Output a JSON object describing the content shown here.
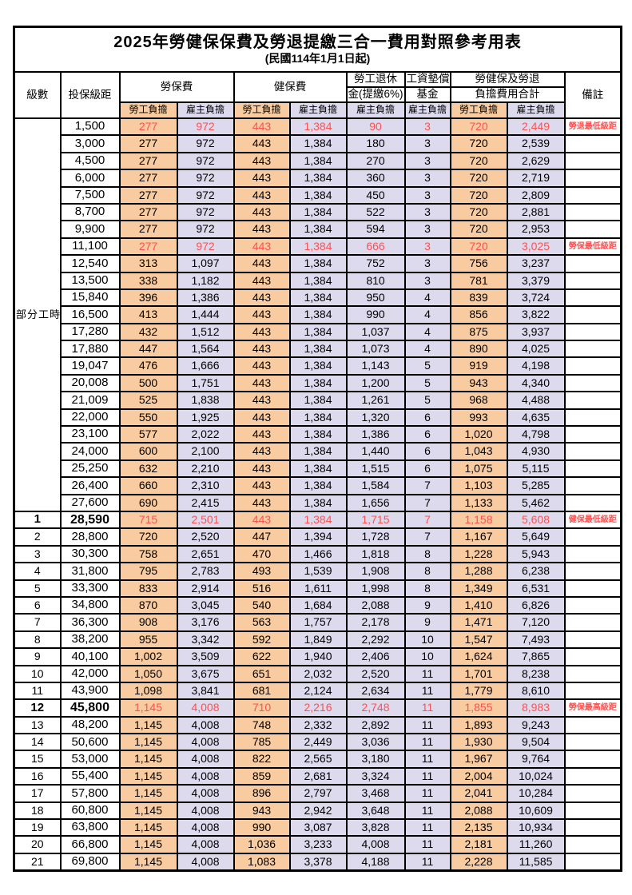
{
  "title": "2025年勞健保保費及勞退提繳三合一費用對照參考用表",
  "subtitle": "(民國114年1月1日起)",
  "header": {
    "level": "級數",
    "salary": "投保級距",
    "labor": "勞保費",
    "health": "健保費",
    "pension_top": "勞工退休",
    "pension_bottom": "金(提繳6%)",
    "fund_top": "工資墊償",
    "fund_bottom": "基金",
    "total_top": "勞健保及勞退",
    "total_bottom": "負擔費用合計",
    "remark": "備註",
    "worker": "勞工負擔",
    "employer": "雇主負擔"
  },
  "part_time_label": "部分工時",
  "colors": {
    "worker_bg": "#F8CBA0",
    "employer_bg": "#DDDAEE",
    "highlight_text": "#FF5050",
    "border": "#000000"
  },
  "rows": [
    {
      "level": "",
      "salary": "1,500",
      "values": [
        "277",
        "972",
        "443",
        "1,384",
        "90",
        "3",
        "720",
        "2,449"
      ],
      "remark": "勞退最低級距",
      "highlight": true,
      "emph": false
    },
    {
      "level": "",
      "salary": "3,000",
      "values": [
        "277",
        "972",
        "443",
        "1,384",
        "180",
        "3",
        "720",
        "2,539"
      ],
      "remark": "",
      "highlight": false,
      "emph": false
    },
    {
      "level": "",
      "salary": "4,500",
      "values": [
        "277",
        "972",
        "443",
        "1,384",
        "270",
        "3",
        "720",
        "2,629"
      ],
      "remark": "",
      "highlight": false,
      "emph": false
    },
    {
      "level": "",
      "salary": "6,000",
      "values": [
        "277",
        "972",
        "443",
        "1,384",
        "360",
        "3",
        "720",
        "2,719"
      ],
      "remark": "",
      "highlight": false,
      "emph": false
    },
    {
      "level": "",
      "salary": "7,500",
      "values": [
        "277",
        "972",
        "443",
        "1,384",
        "450",
        "3",
        "720",
        "2,809"
      ],
      "remark": "",
      "highlight": false,
      "emph": false
    },
    {
      "level": "",
      "salary": "8,700",
      "values": [
        "277",
        "972",
        "443",
        "1,384",
        "522",
        "3",
        "720",
        "2,881"
      ],
      "remark": "",
      "highlight": false,
      "emph": false
    },
    {
      "level": "",
      "salary": "9,900",
      "values": [
        "277",
        "972",
        "443",
        "1,384",
        "594",
        "3",
        "720",
        "2,953"
      ],
      "remark": "",
      "highlight": false,
      "emph": false
    },
    {
      "level": "",
      "salary": "11,100",
      "values": [
        "277",
        "972",
        "443",
        "1,384",
        "666",
        "3",
        "720",
        "3,025"
      ],
      "remark": "勞保最低級距",
      "highlight": true,
      "emph": false
    },
    {
      "level": "",
      "salary": "12,540",
      "values": [
        "313",
        "1,097",
        "443",
        "1,384",
        "752",
        "3",
        "756",
        "3,237"
      ],
      "remark": "",
      "highlight": false,
      "emph": false
    },
    {
      "level": "",
      "salary": "13,500",
      "values": [
        "338",
        "1,182",
        "443",
        "1,384",
        "810",
        "3",
        "781",
        "3,379"
      ],
      "remark": "",
      "highlight": false,
      "emph": false
    },
    {
      "level": "",
      "salary": "15,840",
      "values": [
        "396",
        "1,386",
        "443",
        "1,384",
        "950",
        "4",
        "839",
        "3,724"
      ],
      "remark": "",
      "highlight": false,
      "emph": false
    },
    {
      "level": "",
      "salary": "16,500",
      "values": [
        "413",
        "1,444",
        "443",
        "1,384",
        "990",
        "4",
        "856",
        "3,822"
      ],
      "remark": "",
      "highlight": false,
      "emph": false
    },
    {
      "level": "",
      "salary": "17,280",
      "values": [
        "432",
        "1,512",
        "443",
        "1,384",
        "1,037",
        "4",
        "875",
        "3,937"
      ],
      "remark": "",
      "highlight": false,
      "emph": false
    },
    {
      "level": "",
      "salary": "17,880",
      "values": [
        "447",
        "1,564",
        "443",
        "1,384",
        "1,073",
        "4",
        "890",
        "4,025"
      ],
      "remark": "",
      "highlight": false,
      "emph": false
    },
    {
      "level": "",
      "salary": "19,047",
      "values": [
        "476",
        "1,666",
        "443",
        "1,384",
        "1,143",
        "5",
        "919",
        "4,198"
      ],
      "remark": "",
      "highlight": false,
      "emph": false
    },
    {
      "level": "",
      "salary": "20,008",
      "values": [
        "500",
        "1,751",
        "443",
        "1,384",
        "1,200",
        "5",
        "943",
        "4,340"
      ],
      "remark": "",
      "highlight": false,
      "emph": false
    },
    {
      "level": "",
      "salary": "21,009",
      "values": [
        "525",
        "1,838",
        "443",
        "1,384",
        "1,261",
        "5",
        "968",
        "4,488"
      ],
      "remark": "",
      "highlight": false,
      "emph": false
    },
    {
      "level": "",
      "salary": "22,000",
      "values": [
        "550",
        "1,925",
        "443",
        "1,384",
        "1,320",
        "6",
        "993",
        "4,635"
      ],
      "remark": "",
      "highlight": false,
      "emph": false
    },
    {
      "level": "",
      "salary": "23,100",
      "values": [
        "577",
        "2,022",
        "443",
        "1,384",
        "1,386",
        "6",
        "1,020",
        "4,798"
      ],
      "remark": "",
      "highlight": false,
      "emph": false
    },
    {
      "level": "",
      "salary": "24,000",
      "values": [
        "600",
        "2,100",
        "443",
        "1,384",
        "1,440",
        "6",
        "1,043",
        "4,930"
      ],
      "remark": "",
      "highlight": false,
      "emph": false
    },
    {
      "level": "",
      "salary": "25,250",
      "values": [
        "632",
        "2,210",
        "443",
        "1,384",
        "1,515",
        "6",
        "1,075",
        "5,115"
      ],
      "remark": "",
      "highlight": false,
      "emph": false
    },
    {
      "level": "",
      "salary": "26,400",
      "values": [
        "660",
        "2,310",
        "443",
        "1,384",
        "1,584",
        "7",
        "1,103",
        "5,285"
      ],
      "remark": "",
      "highlight": false,
      "emph": false
    },
    {
      "level": "",
      "salary": "27,600",
      "values": [
        "690",
        "2,415",
        "443",
        "1,384",
        "1,656",
        "7",
        "1,133",
        "5,462"
      ],
      "remark": "",
      "highlight": false,
      "emph": false
    },
    {
      "level": "1",
      "salary": "28,590",
      "values": [
        "715",
        "2,501",
        "443",
        "1,384",
        "1,715",
        "7",
        "1,158",
        "5,608"
      ],
      "remark": "健保最低級距",
      "highlight": true,
      "emph": true
    },
    {
      "level": "2",
      "salary": "28,800",
      "values": [
        "720",
        "2,520",
        "447",
        "1,394",
        "1,728",
        "7",
        "1,167",
        "5,649"
      ],
      "remark": "",
      "highlight": false,
      "emph": false
    },
    {
      "level": "3",
      "salary": "30,300",
      "values": [
        "758",
        "2,651",
        "470",
        "1,466",
        "1,818",
        "8",
        "1,228",
        "5,943"
      ],
      "remark": "",
      "highlight": false,
      "emph": false
    },
    {
      "level": "4",
      "salary": "31,800",
      "values": [
        "795",
        "2,783",
        "493",
        "1,539",
        "1,908",
        "8",
        "1,288",
        "6,238"
      ],
      "remark": "",
      "highlight": false,
      "emph": false
    },
    {
      "level": "5",
      "salary": "33,300",
      "values": [
        "833",
        "2,914",
        "516",
        "1,611",
        "1,998",
        "8",
        "1,349",
        "6,531"
      ],
      "remark": "",
      "highlight": false,
      "emph": false
    },
    {
      "level": "6",
      "salary": "34,800",
      "values": [
        "870",
        "3,045",
        "540",
        "1,684",
        "2,088",
        "9",
        "1,410",
        "6,826"
      ],
      "remark": "",
      "highlight": false,
      "emph": false
    },
    {
      "level": "7",
      "salary": "36,300",
      "values": [
        "908",
        "3,176",
        "563",
        "1,757",
        "2,178",
        "9",
        "1,471",
        "7,120"
      ],
      "remark": "",
      "highlight": false,
      "emph": false
    },
    {
      "level": "8",
      "salary": "38,200",
      "values": [
        "955",
        "3,342",
        "592",
        "1,849",
        "2,292",
        "10",
        "1,547",
        "7,493"
      ],
      "remark": "",
      "highlight": false,
      "emph": false
    },
    {
      "level": "9",
      "salary": "40,100",
      "values": [
        "1,002",
        "3,509",
        "622",
        "1,940",
        "2,406",
        "10",
        "1,624",
        "7,865"
      ],
      "remark": "",
      "highlight": false,
      "emph": false
    },
    {
      "level": "10",
      "salary": "42,000",
      "values": [
        "1,050",
        "3,675",
        "651",
        "2,032",
        "2,520",
        "11",
        "1,701",
        "8,238"
      ],
      "remark": "",
      "highlight": false,
      "emph": false
    },
    {
      "level": "11",
      "salary": "43,900",
      "values": [
        "1,098",
        "3,841",
        "681",
        "2,124",
        "2,634",
        "11",
        "1,779",
        "8,610"
      ],
      "remark": "",
      "highlight": false,
      "emph": false
    },
    {
      "level": "12",
      "salary": "45,800",
      "values": [
        "1,145",
        "4,008",
        "710",
        "2,216",
        "2,748",
        "11",
        "1,855",
        "8,983"
      ],
      "remark": "勞保最高級距",
      "highlight": true,
      "emph": true
    },
    {
      "level": "13",
      "salary": "48,200",
      "values": [
        "1,145",
        "4,008",
        "748",
        "2,332",
        "2,892",
        "11",
        "1,893",
        "9,243"
      ],
      "remark": "",
      "highlight": false,
      "emph": false
    },
    {
      "level": "14",
      "salary": "50,600",
      "values": [
        "1,145",
        "4,008",
        "785",
        "2,449",
        "3,036",
        "11",
        "1,930",
        "9,504"
      ],
      "remark": "",
      "highlight": false,
      "emph": false
    },
    {
      "level": "15",
      "salary": "53,000",
      "values": [
        "1,145",
        "4,008",
        "822",
        "2,565",
        "3,180",
        "11",
        "1,967",
        "9,764"
      ],
      "remark": "",
      "highlight": false,
      "emph": false
    },
    {
      "level": "16",
      "salary": "55,400",
      "values": [
        "1,145",
        "4,008",
        "859",
        "2,681",
        "3,324",
        "11",
        "2,004",
        "10,024"
      ],
      "remark": "",
      "highlight": false,
      "emph": false
    },
    {
      "level": "17",
      "salary": "57,800",
      "values": [
        "1,145",
        "4,008",
        "896",
        "2,797",
        "3,468",
        "11",
        "2,041",
        "10,284"
      ],
      "remark": "",
      "highlight": false,
      "emph": false
    },
    {
      "level": "18",
      "salary": "60,800",
      "values": [
        "1,145",
        "4,008",
        "943",
        "2,942",
        "3,648",
        "11",
        "2,088",
        "10,609"
      ],
      "remark": "",
      "highlight": false,
      "emph": false
    },
    {
      "level": "19",
      "salary": "63,800",
      "values": [
        "1,145",
        "4,008",
        "990",
        "3,087",
        "3,828",
        "11",
        "2,135",
        "10,934"
      ],
      "remark": "",
      "highlight": false,
      "emph": false
    },
    {
      "level": "20",
      "salary": "66,800",
      "values": [
        "1,145",
        "4,008",
        "1,036",
        "3,233",
        "4,008",
        "11",
        "2,181",
        "11,260"
      ],
      "remark": "",
      "highlight": false,
      "emph": false
    },
    {
      "level": "21",
      "salary": "69,800",
      "values": [
        "1,145",
        "4,008",
        "1,083",
        "3,378",
        "4,188",
        "11",
        "2,228",
        "11,585"
      ],
      "remark": "",
      "highlight": false,
      "emph": false
    }
  ]
}
